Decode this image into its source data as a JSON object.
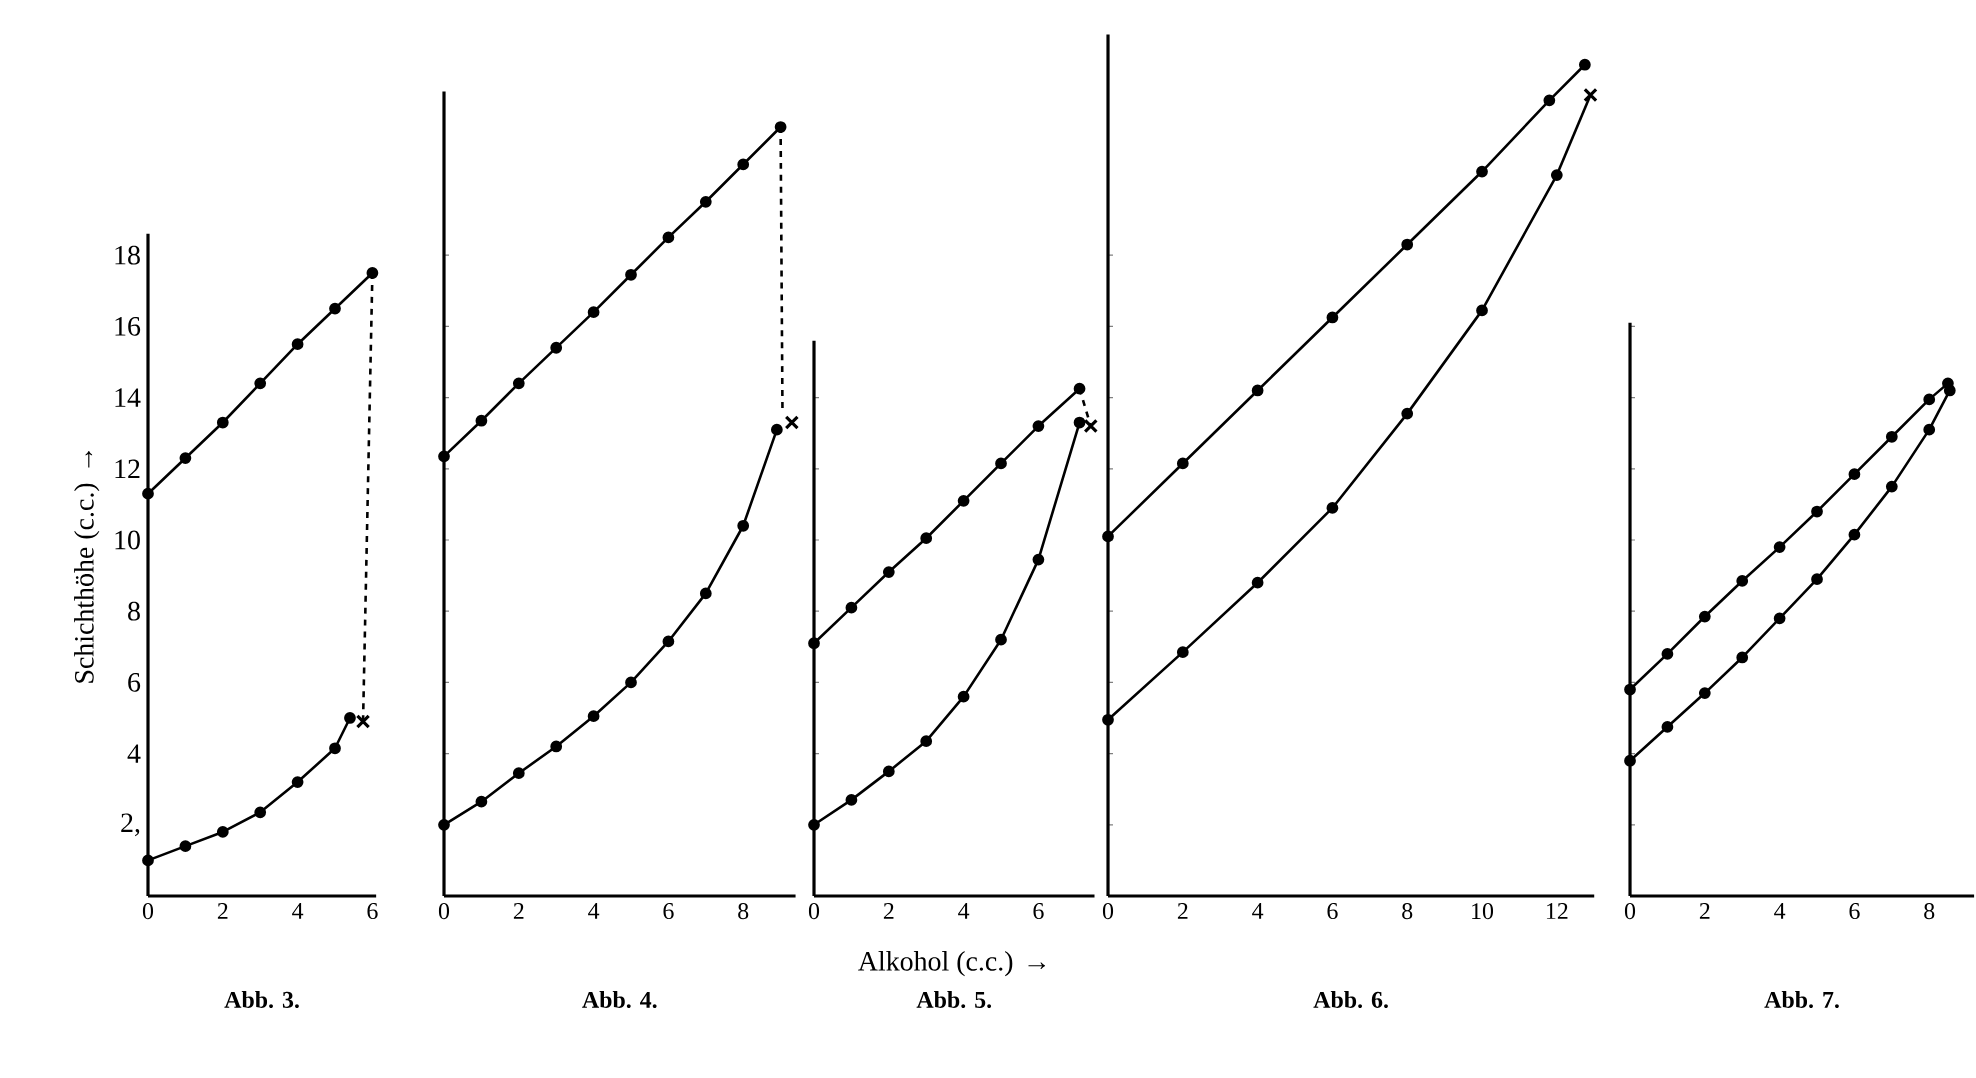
{
  "chart_data": [
    {
      "type": "line",
      "title": "Abb. 3.",
      "ylabel": "Schichthöhe (c.c.) →",
      "xlim": [
        0,
        6.1
      ],
      "ylim": [
        0,
        18.6
      ],
      "xticks": [
        0,
        2,
        4,
        6
      ],
      "yticks": [
        {
          "value": 2,
          "label": "2,"
        },
        4,
        6,
        8,
        10,
        12,
        14,
        16,
        18
      ],
      "series": [
        {
          "color": "#000000",
          "marker": "circle",
          "x": [
            0,
            1,
            2,
            3,
            4,
            5,
            6
          ],
          "values": [
            11.3,
            12.3,
            13.3,
            14.4,
            15.5,
            16.5,
            17.5
          ]
        },
        {
          "color": "#000000",
          "marker": "circle",
          "x": [
            0,
            1,
            2,
            3,
            4,
            5,
            5.4
          ],
          "values": [
            1.0,
            1.4,
            1.8,
            2.35,
            3.2,
            4.15,
            5.0
          ]
        },
        {
          "color": "#000000",
          "type": "line",
          "line_style": "dashed",
          "marker": "none",
          "x": [
            6,
            5.75
          ],
          "values": [
            17.5,
            4.9
          ]
        },
        {
          "color": "#000000",
          "type": "scatter",
          "marker": "cross",
          "x": [
            5.75
          ],
          "values": [
            4.9
          ]
        }
      ]
    },
    {
      "type": "line",
      "title": "Abb. 4.",
      "tick_labels": "x",
      "xlim": [
        0,
        9.4
      ],
      "ylim": [
        0,
        22.6
      ],
      "xticks": [
        0,
        2,
        4,
        6,
        8
      ],
      "yticks": [
        2,
        4,
        6,
        8,
        10,
        12,
        14,
        16,
        18
      ],
      "series": [
        {
          "color": "#000000",
          "marker": "circle",
          "x": [
            0,
            1,
            2,
            3,
            4,
            5,
            6,
            7,
            8,
            9
          ],
          "values": [
            12.35,
            13.35,
            14.4,
            15.4,
            16.4,
            17.45,
            18.5,
            19.5,
            20.55,
            21.6
          ]
        },
        {
          "color": "#000000",
          "marker": "circle",
          "x": [
            0,
            1,
            2,
            3,
            4,
            5,
            6,
            7,
            8,
            8.9
          ],
          "values": [
            2.0,
            2.65,
            3.45,
            4.2,
            5.05,
            6.0,
            7.15,
            8.5,
            10.4,
            13.1
          ]
        },
        {
          "color": "#000000",
          "type": "line",
          "line_style": "dashed",
          "marker": "none",
          "x": [
            9,
            9.05
          ],
          "values": [
            21.6,
            13.6
          ]
        },
        {
          "color": "#000000",
          "type": "scatter",
          "marker": "cross",
          "x": [
            9.3
          ],
          "values": [
            13.3
          ]
        }
      ]
    },
    {
      "type": "line",
      "title": "Abb. 5.",
      "xlabel": "Alkohol (c.c.) →",
      "tick_labels": "x",
      "xlim": [
        0,
        7.5
      ],
      "ylim": [
        0,
        15.6
      ],
      "xticks": [
        0,
        2,
        4,
        6
      ],
      "yticks": [
        2,
        4,
        6,
        8,
        10,
        12,
        14
      ],
      "series": [
        {
          "color": "#000000",
          "marker": "circle",
          "x": [
            0,
            1,
            2,
            3,
            4,
            5,
            6,
            7.1
          ],
          "values": [
            7.1,
            8.1,
            9.1,
            10.05,
            11.1,
            12.15,
            13.2,
            14.25
          ]
        },
        {
          "color": "#000000",
          "marker": "circle",
          "x": [
            0,
            1,
            2,
            3,
            4,
            5,
            6,
            7.1
          ],
          "values": [
            2.0,
            2.7,
            3.5,
            4.35,
            5.6,
            7.2,
            9.45,
            13.3
          ]
        },
        {
          "color": "#000000",
          "type": "line",
          "line_style": "dashed",
          "marker": "none",
          "x": [
            7.1,
            7.4
          ],
          "values": [
            14.25,
            13.2
          ]
        },
        {
          "color": "#000000",
          "type": "scatter",
          "marker": "cross",
          "x": [
            7.4
          ],
          "values": [
            13.2
          ]
        }
      ]
    },
    {
      "type": "line",
      "title": "Abb. 6.",
      "tick_labels": "x",
      "xlim": [
        0,
        13
      ],
      "ylim": [
        0,
        24.2
      ],
      "xticks": [
        0,
        2,
        4,
        6,
        8,
        10,
        12
      ],
      "yticks": [
        2,
        4,
        6,
        8,
        10,
        12,
        14,
        16,
        18
      ],
      "series": [
        {
          "color": "#000000",
          "marker": "circle",
          "x": [
            0,
            2,
            4,
            6,
            8,
            10,
            11.8,
            12.75
          ],
          "values": [
            10.1,
            12.15,
            14.2,
            16.25,
            18.3,
            20.35,
            22.35,
            23.35
          ]
        },
        {
          "color": "#000000",
          "marker": "circle",
          "x": [
            0,
            2,
            4,
            6,
            8,
            10,
            12
          ],
          "values": [
            4.95,
            6.85,
            8.8,
            10.9,
            13.55,
            16.45,
            20.25
          ]
        },
        {
          "color": "#000000",
          "type": "line",
          "marker": "none",
          "x": [
            12,
            12.9
          ],
          "values": [
            20.25,
            22.5
          ]
        },
        {
          "color": "#000000",
          "type": "scatter",
          "marker": "cross",
          "x": [
            12.9
          ],
          "values": [
            22.5
          ]
        }
      ]
    },
    {
      "type": "line",
      "title": "Abb. 7.",
      "tick_labels": "x",
      "xlim": [
        0,
        9.2
      ],
      "ylim": [
        0,
        16.1
      ],
      "xticks": [
        0,
        2,
        4,
        6,
        8
      ],
      "yticks": [
        2,
        4,
        6,
        8,
        10,
        12,
        14,
        16
      ],
      "series": [
        {
          "color": "#000000",
          "marker": "circle",
          "x": [
            0,
            1,
            2,
            3,
            4,
            5,
            6,
            7,
            8,
            8.5
          ],
          "values": [
            5.8,
            6.8,
            7.85,
            8.85,
            9.8,
            10.8,
            11.85,
            12.9,
            13.95,
            14.4
          ]
        },
        {
          "color": "#000000",
          "marker": "circle",
          "x": [
            0,
            1,
            2,
            3,
            4,
            5,
            6,
            7,
            8,
            8.55
          ],
          "values": [
            3.8,
            4.75,
            5.7,
            6.7,
            7.8,
            8.9,
            10.15,
            11.5,
            13.1,
            14.2
          ]
        }
      ]
    }
  ]
}
